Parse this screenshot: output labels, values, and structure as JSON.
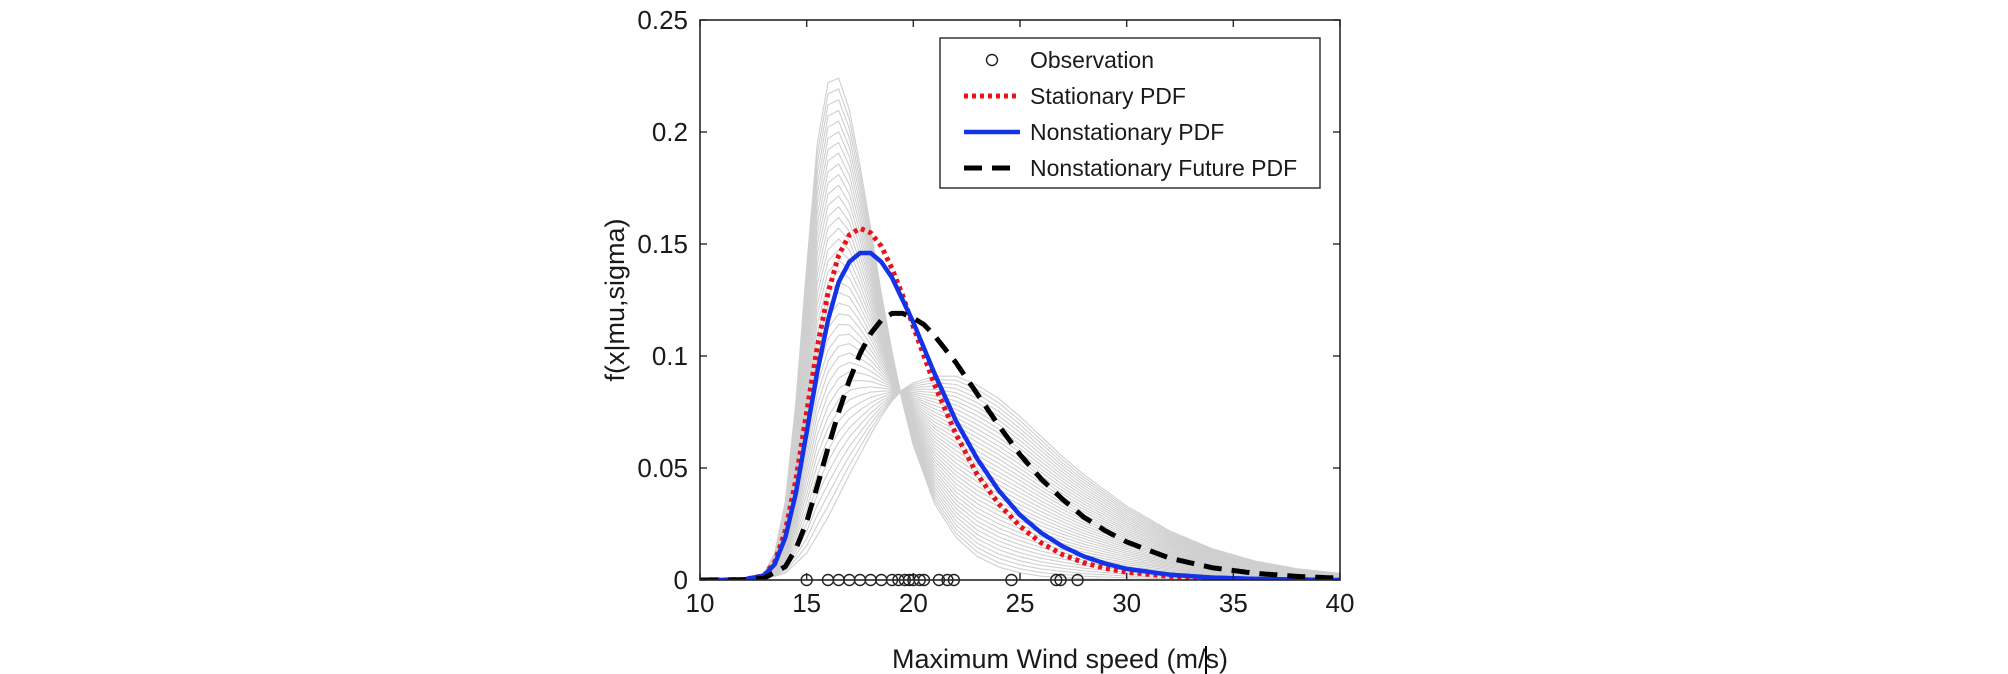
{
  "chart_data": {
    "type": "line",
    "title": "",
    "xlabel": "Maximum Wind speed (m/s)",
    "ylabel": "f(x|mu,sigma)",
    "xlim": [
      10,
      40
    ],
    "ylim": [
      0,
      0.25
    ],
    "x_ticks": [
      10,
      15,
      20,
      25,
      30,
      35,
      40
    ],
    "x_tick_labels": [
      "10",
      "15",
      "20",
      "25",
      "30",
      "35",
      "40"
    ],
    "y_ticks": [
      0,
      0.05,
      0.1,
      0.15,
      0.2,
      0.25
    ],
    "y_tick_labels": [
      "0",
      "0.05",
      "0.1",
      "0.15",
      "0.2",
      "0.25"
    ],
    "grid": false,
    "box": true,
    "legend": {
      "placement": "top-right",
      "entries": [
        {
          "label": "Observation",
          "style": "marker-circle",
          "color": "#222222"
        },
        {
          "label": "Stationary PDF",
          "style": "dotted",
          "color": "#e8141a"
        },
        {
          "label": "Nonstationary PDF",
          "style": "solid",
          "color": "#1432e6"
        },
        {
          "label": "Nonstationary Future PDF",
          "style": "dashed",
          "color": "#000000"
        }
      ]
    },
    "series": [
      {
        "name": "Stationary PDF",
        "style": "dotted",
        "color": "#e8141a",
        "x": [
          10,
          12,
          13,
          13.5,
          14,
          14.5,
          15,
          15.5,
          16,
          16.5,
          17,
          17.5,
          18,
          18.5,
          19,
          19.5,
          20,
          21,
          22,
          23,
          24,
          25,
          26,
          27,
          28,
          29,
          30,
          32,
          34,
          36,
          38,
          40
        ],
        "y": [
          0,
          0.0001,
          0.002,
          0.008,
          0.022,
          0.045,
          0.075,
          0.104,
          0.128,
          0.145,
          0.154,
          0.157,
          0.155,
          0.149,
          0.139,
          0.127,
          0.113,
          0.087,
          0.065,
          0.047,
          0.034,
          0.024,
          0.0165,
          0.0113,
          0.0077,
          0.0052,
          0.0035,
          0.0016,
          0.0007,
          0.0003,
          0.0001,
          0
        ]
      },
      {
        "name": "Nonstationary PDF",
        "style": "solid",
        "color": "#1432e6",
        "x": [
          10,
          12,
          13,
          13.5,
          14,
          14.5,
          15,
          15.5,
          16,
          16.5,
          17,
          17.5,
          18,
          18.5,
          19,
          19.5,
          20,
          21,
          22,
          23,
          24,
          25,
          26,
          27,
          28,
          29,
          30,
          32,
          34,
          36,
          38,
          40
        ],
        "y": [
          0,
          0.0001,
          0.002,
          0.007,
          0.019,
          0.039,
          0.066,
          0.093,
          0.116,
          0.133,
          0.142,
          0.146,
          0.146,
          0.142,
          0.135,
          0.125,
          0.115,
          0.092,
          0.071,
          0.054,
          0.04,
          0.029,
          0.021,
          0.015,
          0.0105,
          0.0073,
          0.005,
          0.0024,
          0.0011,
          0.0005,
          0.0002,
          0
        ]
      },
      {
        "name": "Nonstationary Future PDF",
        "style": "dashed",
        "color": "#000000",
        "x": [
          10,
          12,
          13,
          14,
          14.5,
          15,
          15.5,
          16,
          16.5,
          17,
          17.5,
          18,
          18.5,
          19,
          19.5,
          20,
          20.5,
          21,
          22,
          23,
          24,
          25,
          26,
          27,
          28,
          29,
          30,
          32,
          34,
          36,
          38,
          40
        ],
        "y": [
          0,
          0.0001,
          0.0008,
          0.006,
          0.014,
          0.026,
          0.042,
          0.059,
          0.075,
          0.089,
          0.101,
          0.11,
          0.116,
          0.119,
          0.119,
          0.117,
          0.114,
          0.109,
          0.097,
          0.083,
          0.069,
          0.056,
          0.045,
          0.036,
          0.028,
          0.022,
          0.017,
          0.0098,
          0.0055,
          0.003,
          0.0016,
          0.0008
        ]
      }
    ],
    "background_curves": {
      "color": "#cfcfcf",
      "description_count": 40,
      "first": {
        "x": [
          10,
          12,
          13,
          13.5,
          14,
          14.5,
          15,
          15.5,
          16,
          16.5,
          17,
          17.5,
          18,
          18.5,
          19,
          19.5,
          20,
          21,
          22,
          23,
          24,
          25,
          26,
          28,
          30,
          34,
          40
        ],
        "y": [
          0,
          0.0001,
          0.003,
          0.012,
          0.035,
          0.08,
          0.14,
          0.195,
          0.222,
          0.224,
          0.21,
          0.185,
          0.157,
          0.128,
          0.102,
          0.079,
          0.06,
          0.034,
          0.019,
          0.0105,
          0.0058,
          0.0032,
          0.0017,
          0.0005,
          0.0001,
          0,
          0
        ]
      },
      "last": {
        "x": [
          10,
          13,
          14,
          15,
          16,
          17,
          18,
          18.5,
          19,
          19.5,
          20,
          21,
          22,
          23,
          24,
          25,
          26,
          27,
          28,
          29,
          30,
          32,
          34,
          36,
          38,
          40
        ],
        "y": [
          0,
          0.0003,
          0.003,
          0.012,
          0.028,
          0.047,
          0.065,
          0.073,
          0.08,
          0.085,
          0.088,
          0.091,
          0.091,
          0.087,
          0.081,
          0.073,
          0.064,
          0.055,
          0.047,
          0.04,
          0.033,
          0.022,
          0.014,
          0.0085,
          0.005,
          0.003
        ]
      }
    },
    "observations": [
      15.0,
      16.0,
      16.5,
      17.0,
      17.5,
      18.0,
      18.5,
      19.0,
      19.3,
      19.6,
      19.8,
      20.0,
      20.3,
      20.5,
      21.2,
      21.6,
      21.9,
      24.6,
      26.7,
      26.9,
      27.7
    ]
  }
}
